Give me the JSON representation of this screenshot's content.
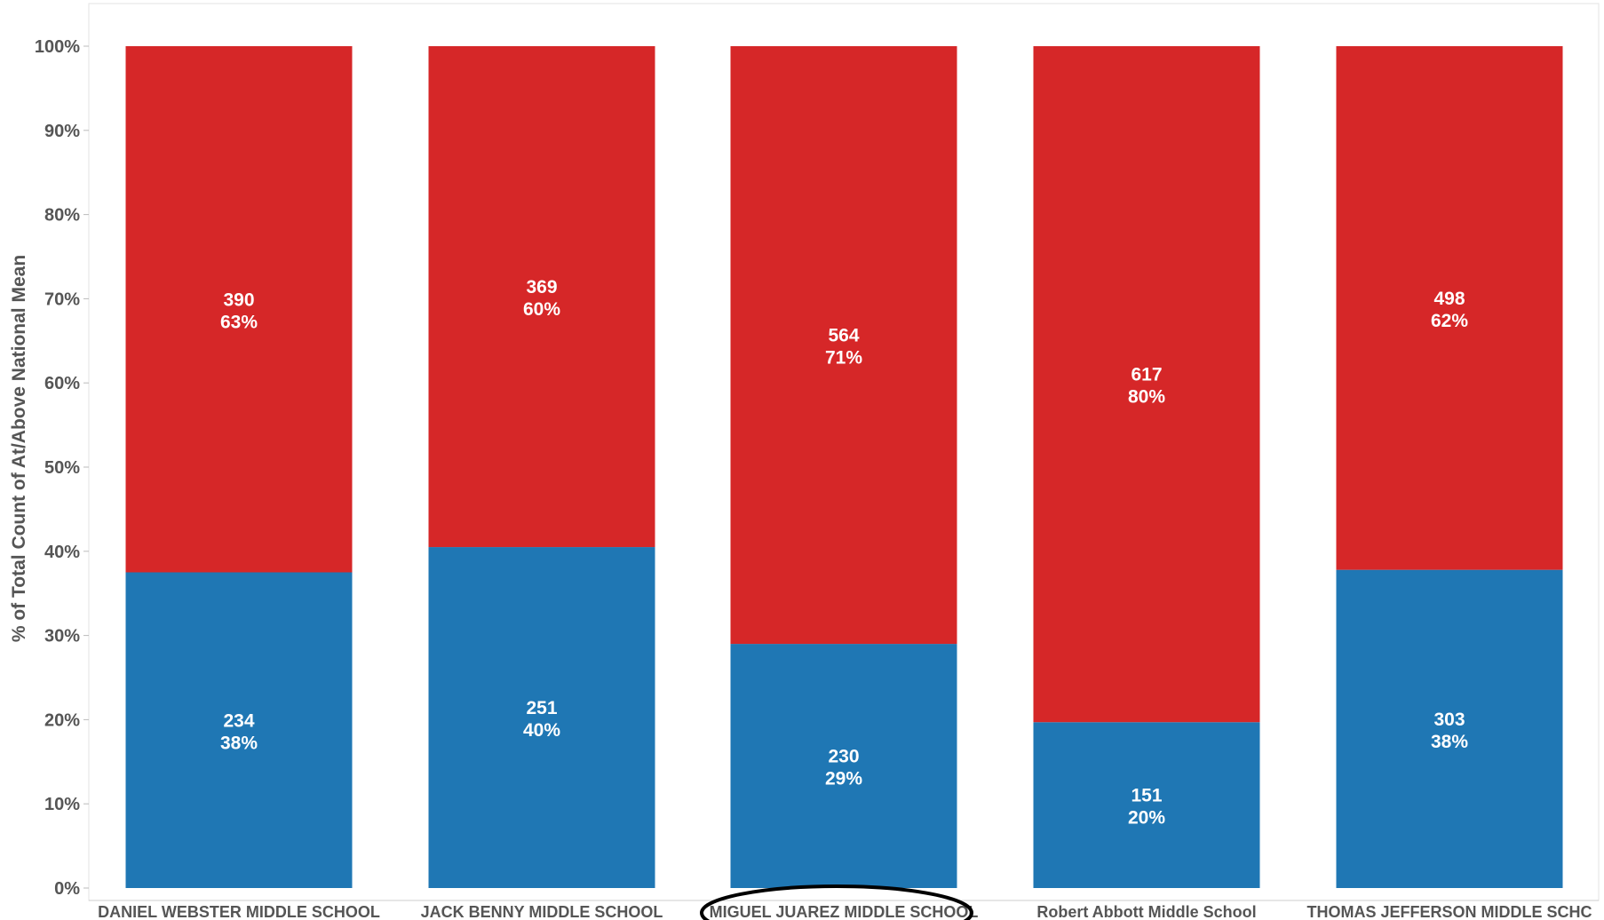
{
  "chart_data": {
    "type": "bar",
    "stacked": true,
    "normalized": true,
    "ylabel": "% of Total Count of At/Above National Mean",
    "xlabel": "",
    "ylim": [
      0,
      100
    ],
    "y_ticks": [
      "0%",
      "10%",
      "20%",
      "30%",
      "40%",
      "50%",
      "60%",
      "70%",
      "80%",
      "90%",
      "100%"
    ],
    "categories": [
      "DANIEL WEBSTER MIDDLE SCHOOL",
      "JACK BENNY MIDDLE SCHOOL",
      "MIGUEL JUAREZ MIDDLE SCHOOL",
      "Robert Abbott Middle School",
      "THOMAS JEFFERSON MIDDLE SCHC"
    ],
    "highlighted_category": "MIGUEL JUAREZ MIDDLE SCHOOL",
    "series": [
      {
        "color": "#1f77b4",
        "counts": [
          "234",
          "251",
          "230",
          "151",
          "303"
        ],
        "percents": [
          "38%",
          "40%",
          "29%",
          "20%",
          "38%"
        ],
        "values": [
          37.5,
          40.5,
          29.0,
          19.7,
          37.8
        ]
      },
      {
        "color": "#d62728",
        "counts": [
          "390",
          "369",
          "564",
          "617",
          "498"
        ],
        "percents": [
          "63%",
          "60%",
          "71%",
          "80%",
          "62%"
        ],
        "values": [
          62.5,
          59.5,
          71.0,
          80.3,
          62.2
        ]
      }
    ],
    "grid": false,
    "legend": "none"
  }
}
